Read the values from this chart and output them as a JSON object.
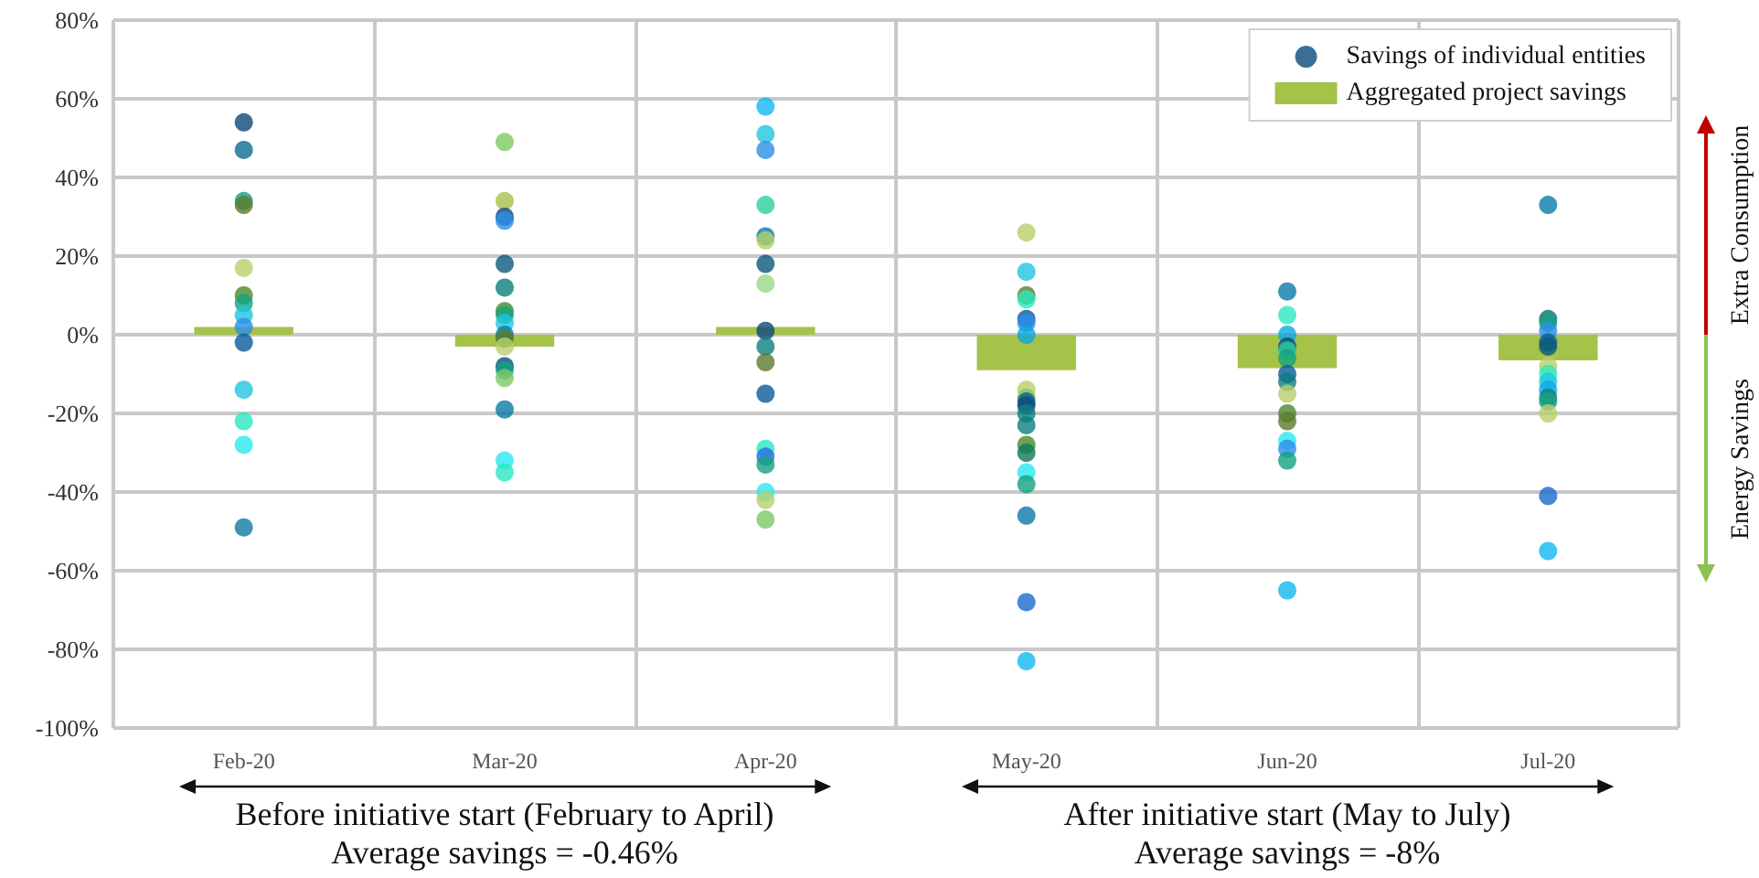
{
  "chart_data": {
    "type": "bar",
    "categories": [
      "Feb-20",
      "Mar-20",
      "Apr-20",
      "May-20",
      "Jun-20",
      "Jul-20"
    ],
    "series": [
      {
        "name": "Aggregated project savings",
        "color": "#a5c249",
        "values": [
          2,
          -3,
          2,
          -9,
          -8.5,
          -6.5
        ]
      },
      {
        "type": "scatter",
        "name": "Savings of individual entities",
        "color": "#0b4a7a",
        "x": [
          "Feb-20",
          "Feb-20",
          "Feb-20",
          "Feb-20",
          "Feb-20",
          "Feb-20",
          "Feb-20",
          "Feb-20",
          "Feb-20",
          "Feb-20",
          "Feb-20",
          "Feb-20",
          "Feb-20",
          "Feb-20",
          "Mar-20",
          "Mar-20",
          "Mar-20",
          "Mar-20",
          "Mar-20",
          "Mar-20",
          "Mar-20",
          "Mar-20",
          "Mar-20",
          "Mar-20",
          "Mar-20",
          "Mar-20",
          "Mar-20",
          "Mar-20",
          "Mar-20",
          "Mar-20",
          "Mar-20",
          "Mar-20",
          "Apr-20",
          "Apr-20",
          "Apr-20",
          "Apr-20",
          "Apr-20",
          "Apr-20",
          "Apr-20",
          "Apr-20",
          "Apr-20",
          "Apr-20",
          "Apr-20",
          "Apr-20",
          "Apr-20",
          "Apr-20",
          "Apr-20",
          "Apr-20",
          "Apr-20",
          "Apr-20",
          "May-20",
          "May-20",
          "May-20",
          "May-20",
          "May-20",
          "May-20",
          "May-20",
          "May-20",
          "May-20",
          "May-20",
          "May-20",
          "May-20",
          "May-20",
          "May-20",
          "May-20",
          "May-20",
          "May-20",
          "May-20",
          "May-20",
          "May-20",
          "Jun-20",
          "Jun-20",
          "Jun-20",
          "Jun-20",
          "Jun-20",
          "Jun-20",
          "Jun-20",
          "Jun-20",
          "Jun-20",
          "Jun-20",
          "Jun-20",
          "Jun-20",
          "Jun-20",
          "Jun-20",
          "Jun-20",
          "Jul-20",
          "Jul-20",
          "Jul-20",
          "Jul-20",
          "Jul-20",
          "Jul-20",
          "Jul-20",
          "Jul-20",
          "Jul-20",
          "Jul-20",
          "Jul-20",
          "Jul-20",
          "Jul-20",
          "Jul-20",
          "Jul-20"
        ],
        "values": [
          54,
          47,
          34,
          33,
          17,
          10,
          8,
          5,
          2,
          -2,
          -14,
          -22,
          -28,
          -49,
          49,
          34,
          30,
          29,
          18,
          12,
          6,
          5,
          3,
          0,
          -1,
          -3,
          -8,
          -9,
          -11,
          -19,
          -32,
          -35,
          58,
          51,
          47,
          33,
          25,
          24,
          18,
          13,
          1,
          -3,
          -7,
          -15,
          -29,
          -31,
          -33,
          -40,
          -42,
          -47,
          26,
          16,
          10,
          9,
          4,
          3,
          0,
          -14,
          -16,
          -17,
          -18,
          -20,
          -23,
          -28,
          -30,
          -35,
          -38,
          -46,
          -68,
          -83,
          11,
          5,
          0,
          -3,
          -4,
          -6,
          -10,
          -12,
          -15,
          -20,
          -22,
          -27,
          -29,
          -32,
          -65,
          33,
          4,
          3,
          1,
          -2,
          -3,
          -8,
          -10,
          -12,
          -14,
          -16,
          -17,
          -20,
          -41,
          -55
        ],
        "colors": [
          "#0b4a7a",
          "#0b6d8f",
          "#13a37f",
          "#5b7a2a",
          "#b8d06c",
          "#4a8a2a",
          "#13a37f",
          "#1fc6e0",
          "#2a8fe8",
          "#0b5a9a",
          "#1fc6e0",
          "#2ae8c0",
          "#2ae8f0",
          "#0b7aa8",
          "#7cc864",
          "#a8c04a",
          "#0b4a7a",
          "#2a8fe8",
          "#0b5a7a",
          "#0d7e7e",
          "#4a8a2a",
          "#13a37f",
          "#1fc6e0",
          "#0b7aa8",
          "#5b7a2a",
          "#b8d06c",
          "#0b4a7a",
          "#13a37f",
          "#7cc864",
          "#0b7aa8",
          "#2ae8f0",
          "#2ae8c0",
          "#12b8f0",
          "#1fc6e0",
          "#2a8fe8",
          "#2ad0a0",
          "#0b7aa8",
          "#b8d06c",
          "#0b5a7a",
          "#98d888",
          "#0b4a7a",
          "#0d7e7e",
          "#5b7a2a",
          "#0b5a9a",
          "#2ae8c0",
          "#2a6ae8",
          "#13a37f",
          "#2ae8f0",
          "#b8d06c",
          "#7cc864",
          "#b8d06c",
          "#1fc6e0",
          "#5b7a2a",
          "#2ae8c0",
          "#0b5a9a",
          "#2a8fe8",
          "#0ba8e0",
          "#b8d06c",
          "#7cc864",
          "#0b5a9a",
          "#0b4a7a",
          "#0d7e7e",
          "#0d7e7e",
          "#4a8a2a",
          "#0b7a5a",
          "#2ae8f0",
          "#13a37f",
          "#0b7aa8",
          "#1a6ad0",
          "#12b8f0",
          "#0b7aa8",
          "#2ae8c0",
          "#0ba8e0",
          "#0b4a7a",
          "#2ad0a0",
          "#13a37f",
          "#0b5a9a",
          "#0d7e7e",
          "#b8d06c",
          "#4a8a2a",
          "#5b7a2a",
          "#2ae8f0",
          "#2a8fe8",
          "#13a37f",
          "#12b8f0",
          "#0b7aa8",
          "#0d6e6e",
          "#13a37f",
          "#2a8fe8",
          "#0b5a9a",
          "#0b5a7a",
          "#b8d06c",
          "#2ae8c0",
          "#1fc6e0",
          "#0ba8e0",
          "#0d7e7e",
          "#13a37f",
          "#b8d06c",
          "#1a6ad0",
          "#12b8f0"
        ]
      }
    ],
    "ylim": [
      -100,
      80
    ],
    "yticks": [
      {
        "value": -100,
        "label": "-100%"
      },
      {
        "value": -80,
        "label": "-80%"
      },
      {
        "value": -60,
        "label": "-60%"
      },
      {
        "value": -40,
        "label": "-40%"
      },
      {
        "value": -20,
        "label": "-20%"
      },
      {
        "value": 0,
        "label": "0%"
      },
      {
        "value": 20,
        "label": "20%"
      },
      {
        "value": 40,
        "label": "40%"
      },
      {
        "value": 60,
        "label": "60%"
      },
      {
        "value": 80,
        "label": "80%"
      }
    ],
    "grid": true,
    "legend": "top right",
    "marker": "circle",
    "annotations": [
      "Before initiative start (February to April)",
      "Average savings = -0.46%",
      "After initiative start (May to July)",
      "Average savings = -8%",
      "Extra Consumption",
      "Energy Savings"
    ]
  }
}
